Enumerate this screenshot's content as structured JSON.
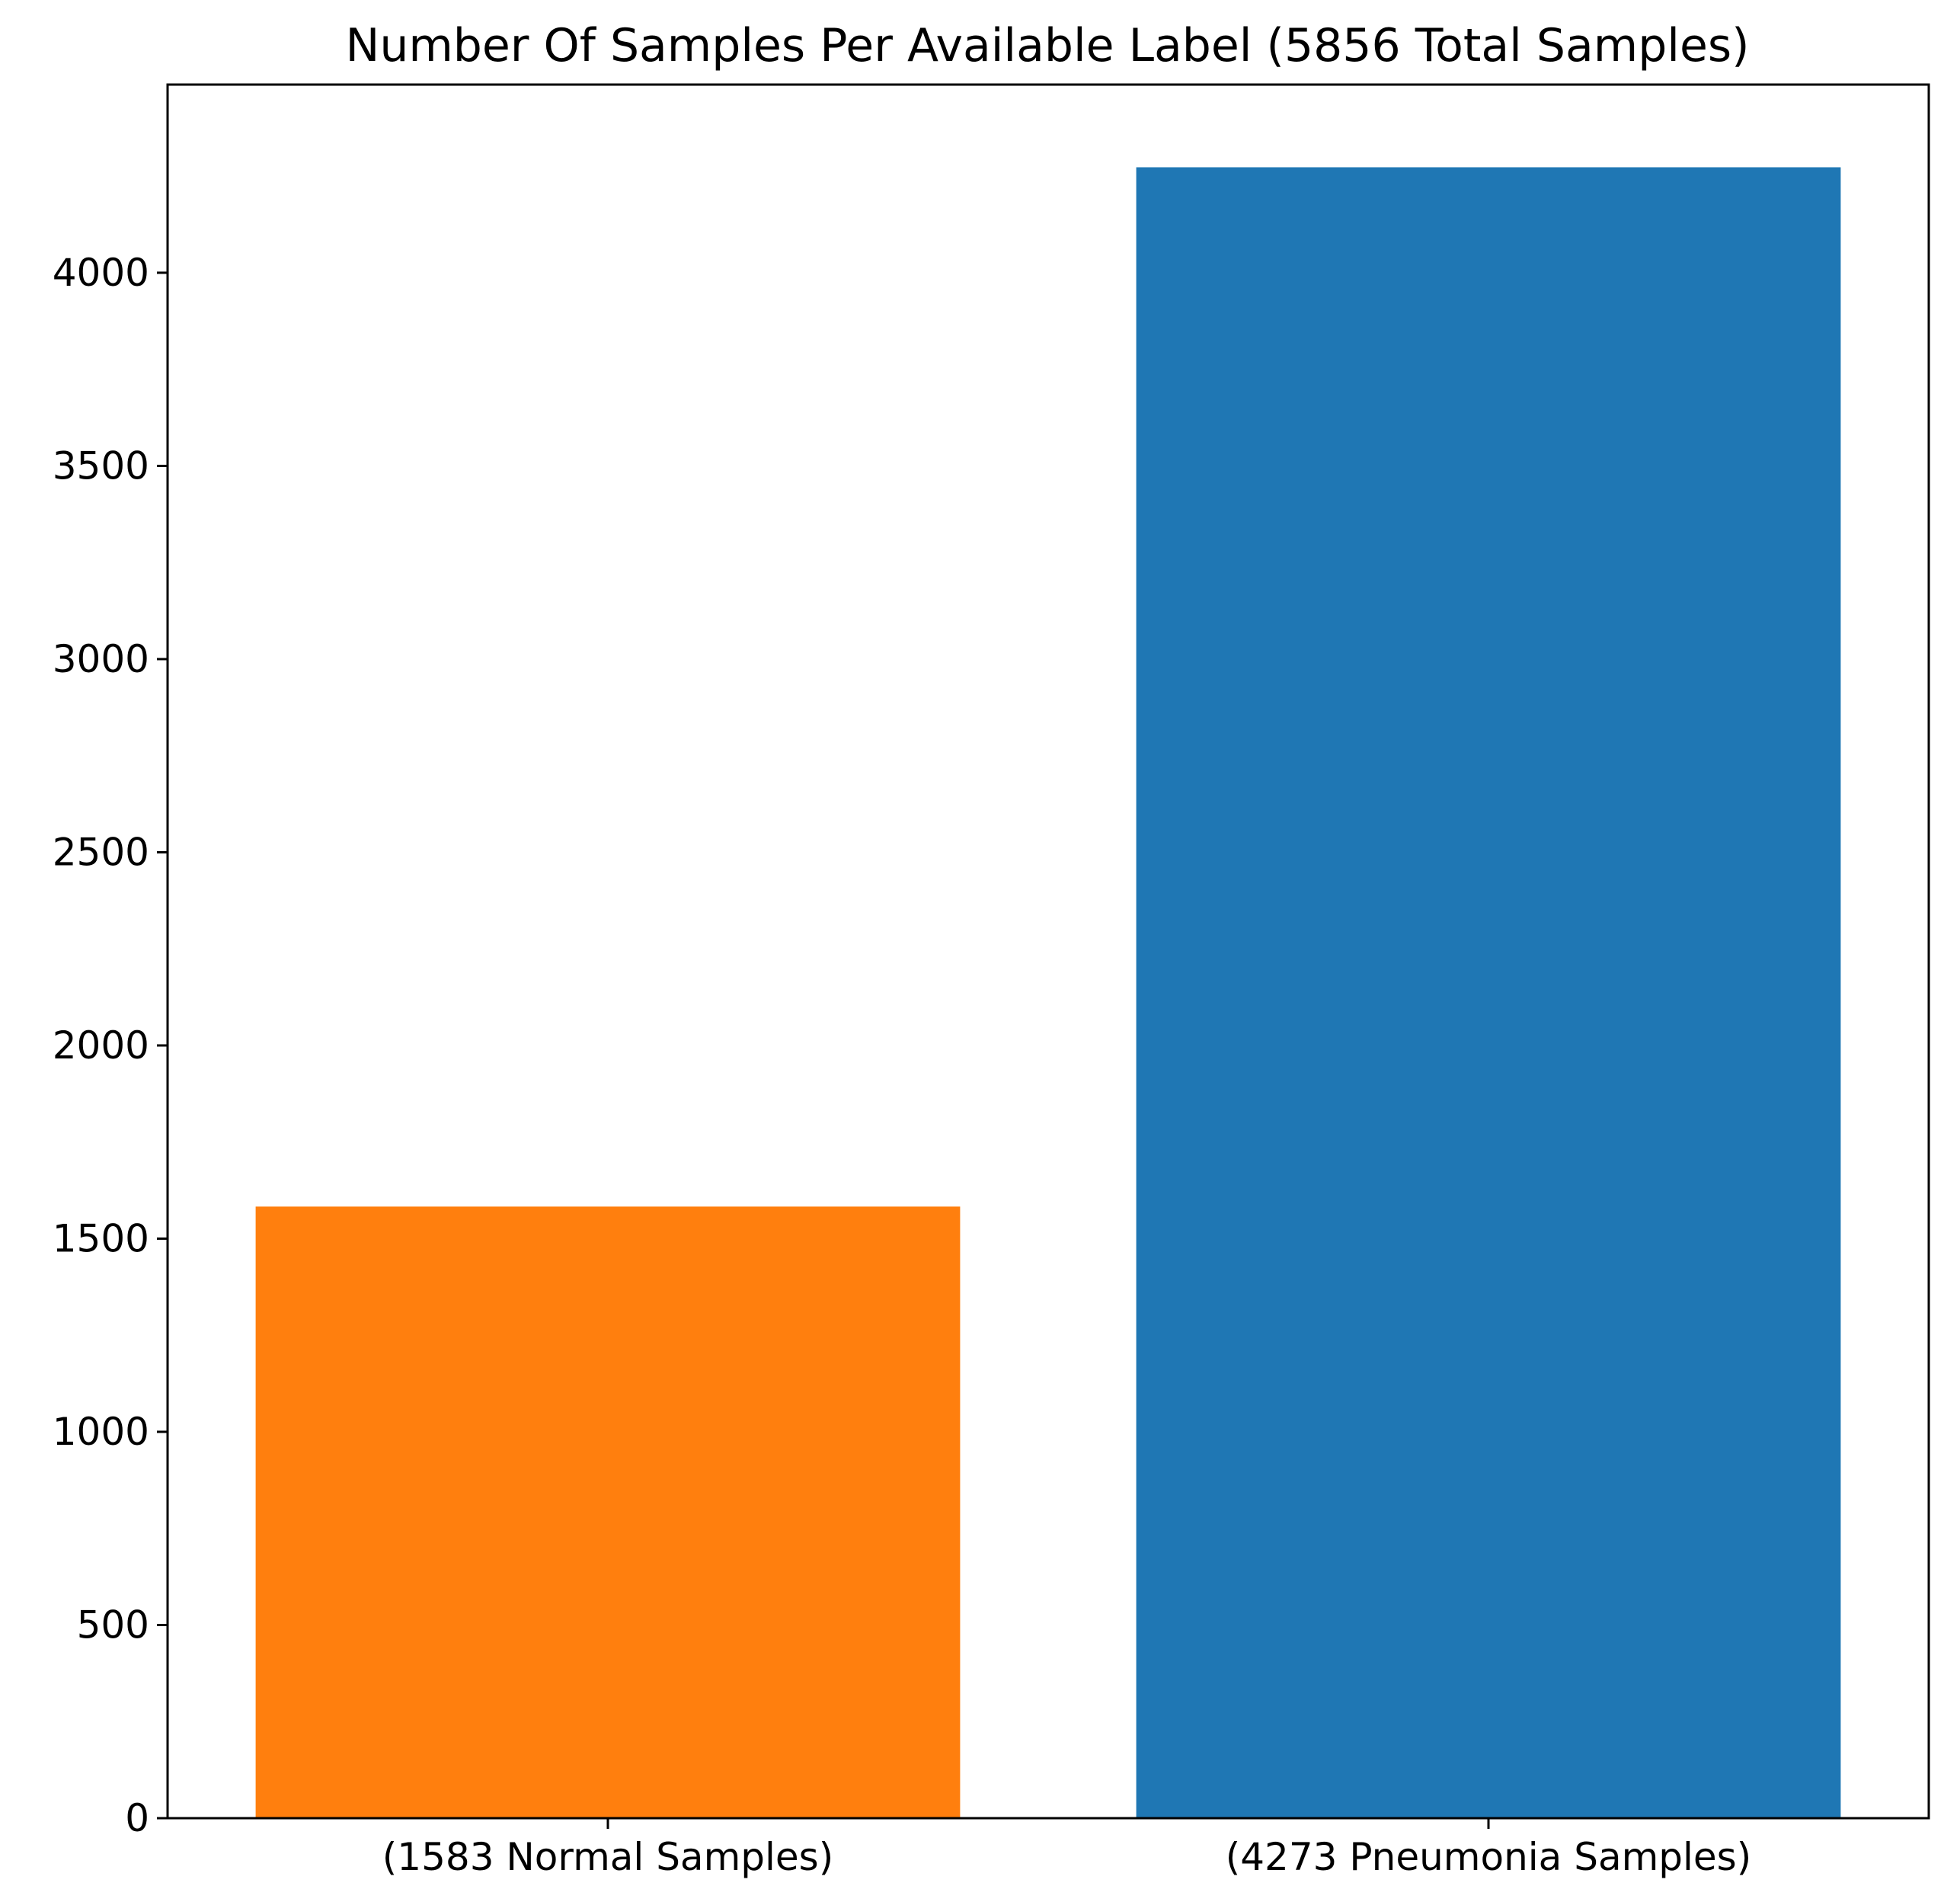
{
  "chart_data": {
    "type": "bar",
    "title": "Number Of Samples Per Available Label (5856 Total Samples)",
    "xlabel": "",
    "ylabel": "",
    "categories": [
      "(1583 Normal Samples)",
      "(4273 Pneumonia Samples)"
    ],
    "values": [
      1583,
      4273
    ],
    "bar_colors": [
      "#ff7f0e",
      "#1f77b4"
    ],
    "ylim": [
      0,
      4487
    ],
    "yticks": [
      0,
      500,
      1000,
      1500,
      2000,
      2500,
      3000,
      3500,
      4000
    ],
    "grid": false,
    "legend": "none"
  }
}
